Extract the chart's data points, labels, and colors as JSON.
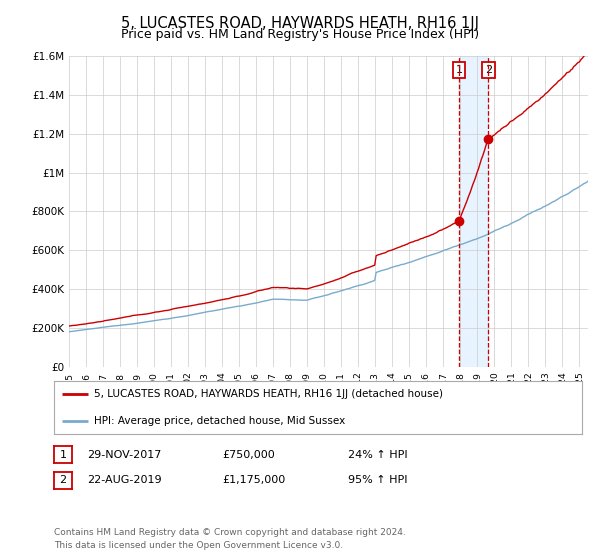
{
  "title": "5, LUCASTES ROAD, HAYWARDS HEATH, RH16 1JJ",
  "subtitle": "Price paid vs. HM Land Registry's House Price Index (HPI)",
  "ylim": [
    0,
    1600000
  ],
  "yticks": [
    0,
    200000,
    400000,
    600000,
    800000,
    1000000,
    1200000,
    1400000,
    1600000
  ],
  "ytick_labels": [
    "£0",
    "£200K",
    "£400K",
    "£600K",
    "£800K",
    "£1M",
    "£1.2M",
    "£1.4M",
    "£1.6M"
  ],
  "red_line_color": "#cc0000",
  "blue_line_color": "#7aabcc",
  "shade_color": "#ddeeff",
  "marker_color": "#cc0000",
  "legend_label_red": "5, LUCASTES ROAD, HAYWARDS HEATH, RH16 1JJ (detached house)",
  "legend_label_blue": "HPI: Average price, detached house, Mid Sussex",
  "annotation_1_date": 2017.91,
  "annotation_1_value": 750000,
  "annotation_1_label": "1",
  "annotation_2_date": 2019.64,
  "annotation_2_value": 1175000,
  "annotation_2_label": "2",
  "table_row1": [
    "1",
    "29-NOV-2017",
    "£750,000",
    "24% ↑ HPI"
  ],
  "table_row2": [
    "2",
    "22-AUG-2019",
    "£1,175,000",
    "95% ↑ HPI"
  ],
  "footer": "Contains HM Land Registry data © Crown copyright and database right 2024.\nThis data is licensed under the Open Government Licence v3.0.",
  "bg_color": "#ffffff",
  "grid_color": "#cccccc",
  "title_fontsize": 10.5,
  "subtitle_fontsize": 9,
  "xmin": 1995,
  "xmax": 2025.5
}
